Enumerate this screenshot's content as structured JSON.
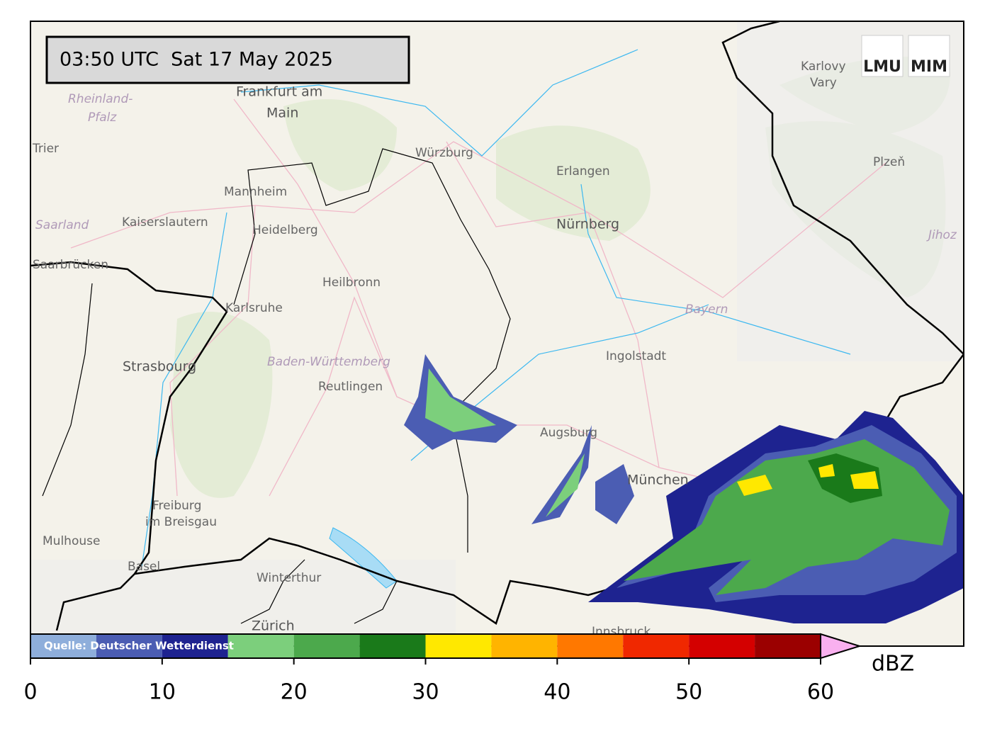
{
  "timestamp": "03:50 UTC  Sat 17 May 2025",
  "logo": [
    "LMU",
    "MIM"
  ],
  "places": [
    "Frankfurt am",
    "Main",
    "Würzburg",
    "Erlangen",
    "Nürnberg",
    "Mannheim",
    "Kaiserslautern",
    "Heidelberg",
    "Saarland",
    "Trier",
    "Rheinland-",
    "Pfalz",
    "Saarbrücken",
    "Heilbronn",
    "Karlsruhe",
    "Strasbourg",
    "Baden-Württemberg",
    "Reutlingen",
    "Ingolstadt",
    "Augsburg",
    "München",
    "Bayern",
    "Freiburg",
    "im Breisgau",
    "Mulhouse",
    "Basel",
    "Winterthur",
    "Zürich",
    "Innsbruck",
    "Karlovy",
    "Vary",
    "Plzeň",
    "Jihoz"
  ],
  "colorbar": {
    "type": "colorbar",
    "source": "Quelle: Deutscher Wetterdienst",
    "unit": "dBZ",
    "lim": [
      0,
      60
    ],
    "bounds": [
      0,
      5,
      10,
      15,
      20,
      25,
      30,
      35,
      40,
      45,
      50,
      55,
      60
    ],
    "colors": [
      "#8eaedb",
      "#4b5db3",
      "#1e2390",
      "#7ccf7c",
      "#4ca94c",
      "#1a7a1a",
      "#ffe800",
      "#ffb400",
      "#ff7800",
      "#f02800",
      "#d40000",
      "#9b0000"
    ],
    "extend_color": "#f9b0ef",
    "ticks": [
      0,
      10,
      20,
      30,
      40,
      50,
      60
    ]
  }
}
